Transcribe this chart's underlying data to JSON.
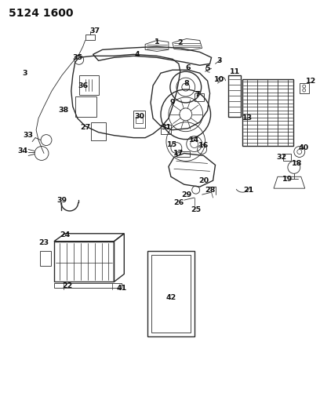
{
  "title": "5124 1600",
  "bg_color": "#ffffff",
  "line_color": "#2a2a2a",
  "label_color": "#111111",
  "fig_width": 4.08,
  "fig_height": 5.33,
  "dpi": 100
}
